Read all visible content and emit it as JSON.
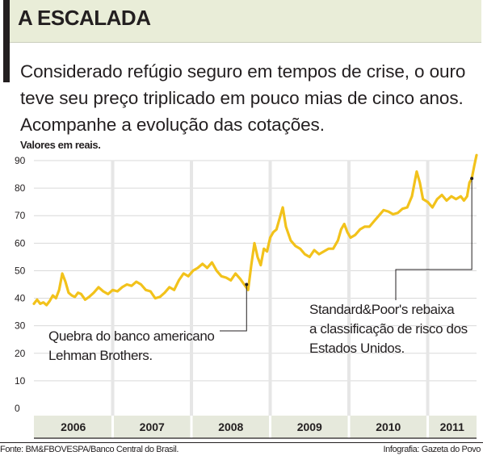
{
  "header": {
    "title": "A ESCALADA",
    "intro": "Considerado refúgio seguro em tempos de crise, o ouro teve seu preço triplicado em pouco mias de cinco anos. Acompanhe a evolução das cotações."
  },
  "footer": {
    "source": "Fonte: BM&FBOVESPA/Banco Central do Brasil.",
    "credit": "Infografia: Gazeta do Povo"
  },
  "chart_data": {
    "type": "line",
    "ylabel": "Valores em reais.",
    "ylim": [
      0,
      90
    ],
    "yticks": [
      0,
      10,
      20,
      30,
      40,
      50,
      60,
      70,
      80,
      90
    ],
    "xlim": [
      2006.0,
      2011.62
    ],
    "years": [
      {
        "label": "2006",
        "start": 2006.0,
        "end": 2007.0
      },
      {
        "label": "2007",
        "start": 2007.0,
        "end": 2008.0
      },
      {
        "label": "2008",
        "start": 2008.0,
        "end": 2009.0
      },
      {
        "label": "2009",
        "start": 2009.0,
        "end": 2010.0
      },
      {
        "label": "2010",
        "start": 2010.0,
        "end": 2011.0
      },
      {
        "label": "2011",
        "start": 2011.0,
        "end": 2011.62
      }
    ],
    "grid": true,
    "series": [
      {
        "color": "#f2c21b",
        "x": [
          2006.0,
          2006.04,
          2006.08,
          2006.12,
          2006.16,
          2006.2,
          2006.24,
          2006.28,
          2006.32,
          2006.36,
          2006.4,
          2006.44,
          2006.48,
          2006.52,
          2006.56,
          2006.6,
          2006.65,
          2006.7,
          2006.76,
          2006.82,
          2006.88,
          2006.94,
          2007.0,
          2007.06,
          2007.12,
          2007.18,
          2007.24,
          2007.3,
          2007.36,
          2007.42,
          2007.48,
          2007.54,
          2007.6,
          2007.66,
          2007.72,
          2007.78,
          2007.84,
          2007.9,
          2007.96,
          2008.02,
          2008.08,
          2008.14,
          2008.2,
          2008.26,
          2008.32,
          2008.38,
          2008.44,
          2008.5,
          2008.56,
          2008.62,
          2008.67,
          2008.72,
          2008.76,
          2008.8,
          2008.84,
          2008.88,
          2008.92,
          2008.96,
          2009.0,
          2009.04,
          2009.08,
          2009.12,
          2009.16,
          2009.2,
          2009.26,
          2009.32,
          2009.38,
          2009.44,
          2009.5,
          2009.56,
          2009.62,
          2009.68,
          2009.74,
          2009.8,
          2009.86,
          2009.9,
          2009.94,
          2009.98,
          2010.02,
          2010.08,
          2010.14,
          2010.2,
          2010.26,
          2010.32,
          2010.38,
          2010.44,
          2010.5,
          2010.56,
          2010.62,
          2010.68,
          2010.74,
          2010.8,
          2010.86,
          2010.9,
          2010.94,
          2011.0,
          2011.06,
          2011.12,
          2011.18,
          2011.24,
          2011.3,
          2011.36,
          2011.42,
          2011.46,
          2011.5,
          2011.53,
          2011.56,
          2011.59,
          2011.62
        ],
        "y": [
          38,
          39.5,
          38,
          38.5,
          37.5,
          39,
          41,
          40,
          43,
          49,
          46,
          42,
          41,
          40.5,
          42,
          41.5,
          39.5,
          40.5,
          42,
          44,
          42.5,
          41.5,
          43,
          42.5,
          44,
          45,
          44.5,
          46,
          45,
          43,
          42.5,
          40,
          40.5,
          42,
          44,
          43,
          46.5,
          49,
          48,
          50,
          51,
          52.5,
          51,
          53,
          50,
          48,
          47.5,
          46.5,
          49,
          47,
          45,
          43,
          52,
          60,
          55,
          52,
          58,
          57,
          62,
          64,
          65,
          69,
          73,
          66,
          61,
          59,
          58,
          56,
          55,
          57.5,
          56,
          57,
          58,
          58,
          61,
          65,
          67,
          64,
          62,
          63,
          65,
          66,
          66,
          68,
          70,
          72,
          71.5,
          70.5,
          71,
          72.5,
          73,
          77,
          86,
          82,
          76,
          75,
          73,
          76,
          77.5,
          75.5,
          77,
          76,
          77,
          75.5,
          77,
          82,
          83.5,
          88,
          92
        ]
      }
    ],
    "annotations": [
      {
        "lines": [
          "Quebra do banco americano",
          "Lehman Brothers."
        ],
        "x": 2008.7,
        "y": 45
      },
      {
        "lines": [
          "Standard&Poor's rebaixa",
          "a classificação de risco dos",
          "Estados Unidos."
        ],
        "x": 2011.56,
        "y": 83.5
      }
    ]
  }
}
